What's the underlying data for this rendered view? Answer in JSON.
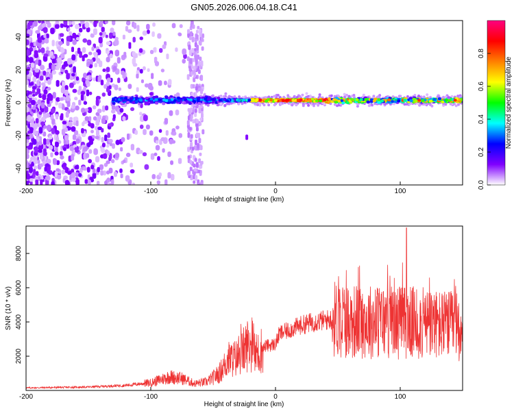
{
  "chart_data": [
    {
      "type": "heatmap",
      "title": "GN05.2026.006.04.18.C41",
      "xlabel": "Height of straight line (km)",
      "ylabel": "Frequency (Hz)",
      "xlim": [
        -200,
        150
      ],
      "ylim": [
        -50,
        50
      ],
      "xticks": [
        -200,
        -100,
        0,
        100
      ],
      "yticks": [
        -40,
        -20,
        0,
        20,
        40
      ],
      "colorbar": {
        "label": "Normalized spectral amplitude",
        "range": [
          0,
          1
        ],
        "ticks": [
          0.0,
          0.2,
          0.4,
          0.6,
          0.8
        ],
        "colors": [
          "#ffffff",
          "#8000ff",
          "#0000ff",
          "#00ffff",
          "#00ff00",
          "#ffff00",
          "#ff8000",
          "#ff0000",
          "#ff0080"
        ]
      },
      "features": {
        "noise_region_x": [
          -200,
          -95
        ],
        "noise_band_x": [
          -70,
          -58
        ],
        "signal_line_start_x": -130,
        "signal_line_freq": 1.5,
        "isolated_blob": {
          "x": -23,
          "y": -21
        }
      }
    },
    {
      "type": "line",
      "xlabel": "Height of straight line (km)",
      "ylabel": "SNR (10 * v/v)",
      "xlim": [
        -200,
        150
      ],
      "ylim": [
        0,
        9600
      ],
      "xticks": [
        -200,
        -100,
        0,
        100
      ],
      "yticks": [
        2000,
        4000,
        6000,
        8000
      ],
      "color": "#ee3333",
      "trend": [
        {
          "x": -200,
          "y": 150
        },
        {
          "x": -150,
          "y": 200
        },
        {
          "x": -120,
          "y": 300
        },
        {
          "x": -100,
          "y": 450
        },
        {
          "x": -85,
          "y": 800
        },
        {
          "x": -75,
          "y": 700
        },
        {
          "x": -65,
          "y": 400
        },
        {
          "x": -55,
          "y": 500
        },
        {
          "x": -45,
          "y": 1000
        },
        {
          "x": -38,
          "y": 1800
        },
        {
          "x": -30,
          "y": 1900
        },
        {
          "x": -22,
          "y": 2700
        },
        {
          "x": -15,
          "y": 2100
        },
        {
          "x": -8,
          "y": 2600
        },
        {
          "x": 0,
          "y": 2700
        },
        {
          "x": 3,
          "y": 3300
        },
        {
          "x": 10,
          "y": 3500
        },
        {
          "x": 20,
          "y": 3800
        },
        {
          "x": 30,
          "y": 4000
        },
        {
          "x": 40,
          "y": 4100
        },
        {
          "x": 50,
          "y": 4200
        },
        {
          "x": 60,
          "y": 4050
        },
        {
          "x": 100,
          "y": 4000
        },
        {
          "x": 150,
          "y": 3700
        }
      ],
      "peak": {
        "x": 105,
        "y": 9500
      }
    }
  ]
}
